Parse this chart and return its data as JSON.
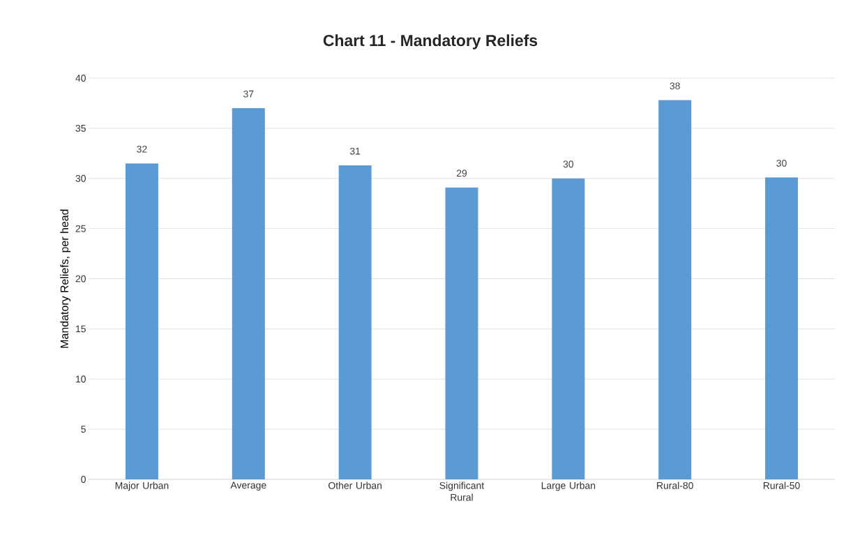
{
  "chart_data": {
    "type": "bar",
    "title": "Chart 11 - Mandatory Reliefs",
    "ylabel": "Mandatory Reliefs, per head",
    "categories": [
      "Major Urban",
      "Average",
      "Other Urban",
      "Significant Rural",
      "Large Urban",
      "Rural-80",
      "Rural-50"
    ],
    "values": [
      31.5,
      37.0,
      31.3,
      29.1,
      30.0,
      37.8,
      30.1
    ],
    "value_labels": [
      "32",
      "37",
      "31",
      "29",
      "30",
      "38",
      "30"
    ],
    "color": "#5b9bd5",
    "ylim": [
      0,
      40
    ],
    "yticks": [
      0,
      5,
      10,
      15,
      20,
      25,
      30,
      35,
      40
    ],
    "grid": "y"
  }
}
